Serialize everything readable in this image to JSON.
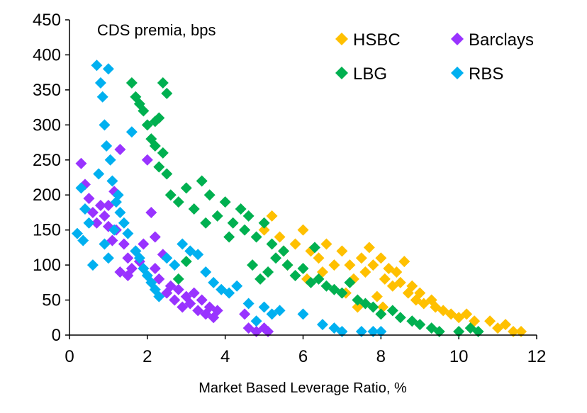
{
  "chart_data": {
    "type": "scatter",
    "title": "",
    "annotation": "CDS premia, bps",
    "xlabel": "Market Based Leverage Ratio, %",
    "ylabel": "",
    "xlim": [
      0,
      12
    ],
    "ylim": [
      0,
      450
    ],
    "x_ticks": [
      "0",
      "2",
      "4",
      "6",
      "8",
      "10",
      "12"
    ],
    "y_ticks": [
      "0",
      "50",
      "100",
      "150",
      "200",
      "250",
      "300",
      "350",
      "400",
      "450"
    ],
    "grid": false,
    "legend": "top-right",
    "marker": "diamond",
    "series": [
      {
        "name": "HSBC",
        "color": "#FFC000",
        "points": [
          [
            5.0,
            150
          ],
          [
            5.2,
            170
          ],
          [
            5.4,
            140
          ],
          [
            5.5,
            120
          ],
          [
            5.6,
            100
          ],
          [
            5.8,
            130
          ],
          [
            6.0,
            150
          ],
          [
            6.2,
            120
          ],
          [
            6.4,
            110
          ],
          [
            6.6,
            130
          ],
          [
            6.8,
            100
          ],
          [
            7.0,
            120
          ],
          [
            7.2,
            100
          ],
          [
            7.3,
            80
          ],
          [
            7.5,
            110
          ],
          [
            7.6,
            90
          ],
          [
            7.7,
            125
          ],
          [
            7.8,
            100
          ],
          [
            8.0,
            110
          ],
          [
            8.1,
            80
          ],
          [
            8.2,
            95
          ],
          [
            8.3,
            70
          ],
          [
            8.4,
            90
          ],
          [
            8.5,
            75
          ],
          [
            8.6,
            105
          ],
          [
            8.7,
            60
          ],
          [
            8.8,
            70
          ],
          [
            8.9,
            50
          ],
          [
            9.0,
            60
          ],
          [
            9.1,
            45
          ],
          [
            9.3,
            50
          ],
          [
            9.4,
            40
          ],
          [
            9.6,
            35
          ],
          [
            9.8,
            30
          ],
          [
            10.0,
            25
          ],
          [
            10.2,
            30
          ],
          [
            10.4,
            20
          ],
          [
            10.8,
            20
          ],
          [
            11.0,
            10
          ],
          [
            11.2,
            15
          ],
          [
            11.4,
            5
          ],
          [
            11.6,
            5
          ],
          [
            6.1,
            80
          ],
          [
            6.5,
            90
          ],
          [
            7.1,
            60
          ],
          [
            7.4,
            40
          ],
          [
            7.9,
            55
          ],
          [
            8.05,
            40
          ]
        ]
      },
      {
        "name": "Barclays",
        "color": "#9933FF",
        "points": [
          [
            0.3,
            245
          ],
          [
            0.4,
            215
          ],
          [
            0.5,
            195
          ],
          [
            0.6,
            175
          ],
          [
            0.7,
            160
          ],
          [
            0.8,
            185
          ],
          [
            0.9,
            170
          ],
          [
            1.0,
            155
          ],
          [
            1.1,
            135
          ],
          [
            1.2,
            150
          ],
          [
            1.3,
            265
          ],
          [
            1.4,
            130
          ],
          [
            1.5,
            110
          ],
          [
            1.6,
            95
          ],
          [
            1.7,
            120
          ],
          [
            1.8,
            105
          ],
          [
            1.9,
            130
          ],
          [
            2.0,
            250
          ],
          [
            2.1,
            175
          ],
          [
            2.2,
            140
          ],
          [
            2.3,
            80
          ],
          [
            2.4,
            115
          ],
          [
            2.5,
            60
          ],
          [
            2.6,
            70
          ],
          [
            2.7,
            50
          ],
          [
            2.8,
            65
          ],
          [
            2.9,
            40
          ],
          [
            3.0,
            55
          ],
          [
            3.1,
            45
          ],
          [
            3.2,
            60
          ],
          [
            3.3,
            35
          ],
          [
            3.4,
            50
          ],
          [
            3.5,
            30
          ],
          [
            3.6,
            40
          ],
          [
            3.7,
            25
          ],
          [
            3.8,
            35
          ],
          [
            4.5,
            30
          ],
          [
            4.6,
            10
          ],
          [
            4.8,
            5
          ],
          [
            5.0,
            10
          ],
          [
            5.1,
            5
          ],
          [
            1.3,
            90
          ],
          [
            1.5,
            85
          ],
          [
            2.2,
            95
          ],
          [
            1.0,
            185
          ],
          [
            1.15,
            205
          ]
        ]
      },
      {
        "name": "LBG",
        "color": "#00B050",
        "points": [
          [
            1.6,
            360
          ],
          [
            1.7,
            340
          ],
          [
            1.8,
            330
          ],
          [
            1.9,
            320
          ],
          [
            2.0,
            300
          ],
          [
            2.1,
            280
          ],
          [
            2.2,
            270
          ],
          [
            2.3,
            240
          ],
          [
            2.4,
            360
          ],
          [
            2.5,
            345
          ],
          [
            2.4,
            260
          ],
          [
            2.5,
            230
          ],
          [
            2.2,
            305
          ],
          [
            2.3,
            310
          ],
          [
            2.6,
            200
          ],
          [
            2.8,
            190
          ],
          [
            3.0,
            210
          ],
          [
            3.2,
            180
          ],
          [
            3.4,
            220
          ],
          [
            3.6,
            200
          ],
          [
            3.8,
            170
          ],
          [
            4.0,
            190
          ],
          [
            4.2,
            160
          ],
          [
            4.4,
            180
          ],
          [
            4.5,
            150
          ],
          [
            4.6,
            170
          ],
          [
            4.8,
            140
          ],
          [
            5.0,
            160
          ],
          [
            5.2,
            130
          ],
          [
            4.7,
            100
          ],
          [
            4.9,
            80
          ],
          [
            5.1,
            90
          ],
          [
            5.3,
            110
          ],
          [
            5.6,
            100
          ],
          [
            5.8,
            85
          ],
          [
            6.0,
            95
          ],
          [
            6.2,
            75
          ],
          [
            6.4,
            80
          ],
          [
            6.6,
            70
          ],
          [
            6.8,
            65
          ],
          [
            7.0,
            60
          ],
          [
            7.2,
            75
          ],
          [
            7.4,
            50
          ],
          [
            7.6,
            45
          ],
          [
            7.8,
            40
          ],
          [
            8.0,
            30
          ],
          [
            8.3,
            35
          ],
          [
            8.5,
            25
          ],
          [
            8.8,
            20
          ],
          [
            9.0,
            15
          ],
          [
            9.3,
            10
          ],
          [
            9.5,
            5
          ],
          [
            10.0,
            5
          ],
          [
            10.3,
            10
          ],
          [
            10.5,
            5
          ],
          [
            3.0,
            105
          ],
          [
            2.8,
            80
          ],
          [
            3.5,
            160
          ],
          [
            4.1,
            140
          ],
          [
            5.5,
            120
          ],
          [
            6.3,
            125
          ]
        ]
      },
      {
        "name": "RBS",
        "color": "#00B0F0",
        "points": [
          [
            0.2,
            145
          ],
          [
            0.3,
            210
          ],
          [
            0.35,
            135
          ],
          [
            0.4,
            180
          ],
          [
            0.5,
            160
          ],
          [
            0.6,
            100
          ],
          [
            0.7,
            385
          ],
          [
            0.8,
            360
          ],
          [
            0.85,
            340
          ],
          [
            0.9,
            300
          ],
          [
            0.95,
            270
          ],
          [
            1.0,
            380
          ],
          [
            1.05,
            250
          ],
          [
            1.1,
            220
          ],
          [
            1.2,
            190
          ],
          [
            1.3,
            175
          ],
          [
            1.4,
            160
          ],
          [
            1.5,
            145
          ],
          [
            1.6,
            290
          ],
          [
            1.7,
            120
          ],
          [
            1.8,
            110
          ],
          [
            1.9,
            95
          ],
          [
            2.0,
            85
          ],
          [
            2.1,
            75
          ],
          [
            2.2,
            65
          ],
          [
            2.3,
            55
          ],
          [
            2.5,
            110
          ],
          [
            2.7,
            100
          ],
          [
            2.9,
            130
          ],
          [
            3.1,
            120
          ],
          [
            3.3,
            115
          ],
          [
            3.5,
            90
          ],
          [
            3.7,
            75
          ],
          [
            3.9,
            65
          ],
          [
            4.1,
            60
          ],
          [
            4.3,
            70
          ],
          [
            4.6,
            45
          ],
          [
            4.8,
            20
          ],
          [
            5.0,
            40
          ],
          [
            5.2,
            30
          ],
          [
            5.4,
            35
          ],
          [
            6.0,
            30
          ],
          [
            6.5,
            15
          ],
          [
            6.8,
            10
          ],
          [
            7.0,
            5
          ],
          [
            7.5,
            5
          ],
          [
            7.8,
            5
          ],
          [
            8.0,
            5
          ],
          [
            0.9,
            130
          ],
          [
            1.0,
            110
          ],
          [
            1.15,
            150
          ],
          [
            1.25,
            200
          ],
          [
            0.75,
            230
          ]
        ]
      }
    ]
  }
}
